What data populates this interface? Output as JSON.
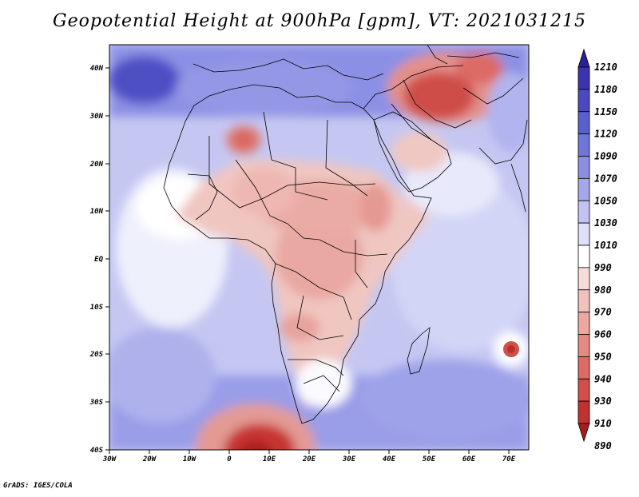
{
  "title": "Geopotential Height at 900hPa [gpm], VT: 2021031215",
  "credit": "GrADS: IGES/COLA",
  "map": {
    "lat_ticks": [
      "40N",
      "30N",
      "20N",
      "10N",
      "EQ",
      "10S",
      "20S",
      "30S",
      "40S"
    ],
    "lon_ticks": [
      "30W",
      "20W",
      "10W",
      "0",
      "10E",
      "20E",
      "30E",
      "40E",
      "50E",
      "60E",
      "70E"
    ]
  },
  "colorbar": {
    "levels": [
      "1210",
      "1180",
      "1150",
      "1120",
      "1090",
      "1070",
      "1050",
      "1030",
      "1010",
      "990",
      "980",
      "970",
      "960",
      "950",
      "940",
      "930",
      "910",
      "890"
    ],
    "colors": [
      "#2c1f9a",
      "#3b34b0",
      "#4a4ac0",
      "#5a5fd0",
      "#6f75db",
      "#8a8fe3",
      "#a4a8ea",
      "#c1c3f2",
      "#dfe0f8",
      "#ffffff",
      "#f7dcd9",
      "#f1c2bd",
      "#eba7a0",
      "#e48a83",
      "#dc6b65",
      "#d34d49",
      "#c2302f",
      "#a71d1d"
    ]
  }
}
